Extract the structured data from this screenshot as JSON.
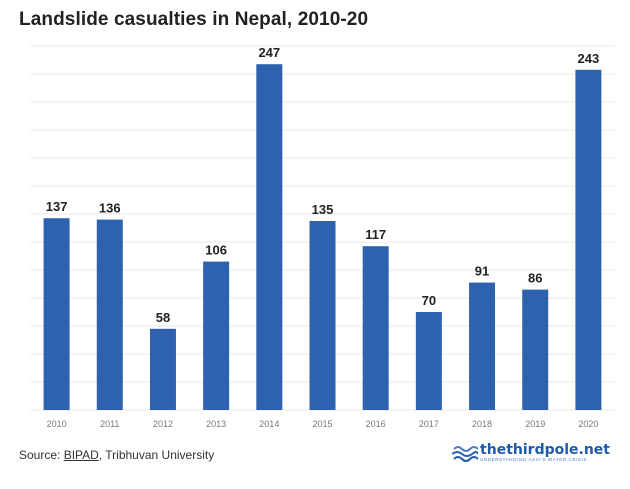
{
  "title": "Landslide casualties in Nepal, 2010-20",
  "footer": {
    "source_prefix": "Source: ",
    "source_link": "BIPAD",
    "source_rest": ", Tribhuvan University"
  },
  "logo": {
    "name": "thethirdpole.net",
    "tagline": "UNDERSTANDING ASIA'S WATER CRISIS",
    "icon": "waves-logo-icon"
  },
  "colors": {
    "bar": "#2f62ae",
    "grid": "#e8e8e8",
    "tick": "#777777",
    "label": "#222222"
  },
  "chart_data": {
    "type": "bar",
    "title": "Landslide casualties in Nepal, 2010-20",
    "categories": [
      "2010",
      "2011",
      "2012",
      "2013",
      "2014",
      "2015",
      "2016",
      "2017",
      "2018",
      "2019",
      "2020"
    ],
    "values": [
      137,
      136,
      58,
      106,
      247,
      135,
      117,
      70,
      91,
      86,
      243
    ],
    "data_labels": [
      "137",
      "136",
      "58",
      "106",
      "247",
      "135",
      "117",
      "70",
      "91",
      "86",
      "243"
    ],
    "xlabel": "",
    "ylabel": "",
    "ylim": [
      0,
      260
    ],
    "grid": true
  }
}
